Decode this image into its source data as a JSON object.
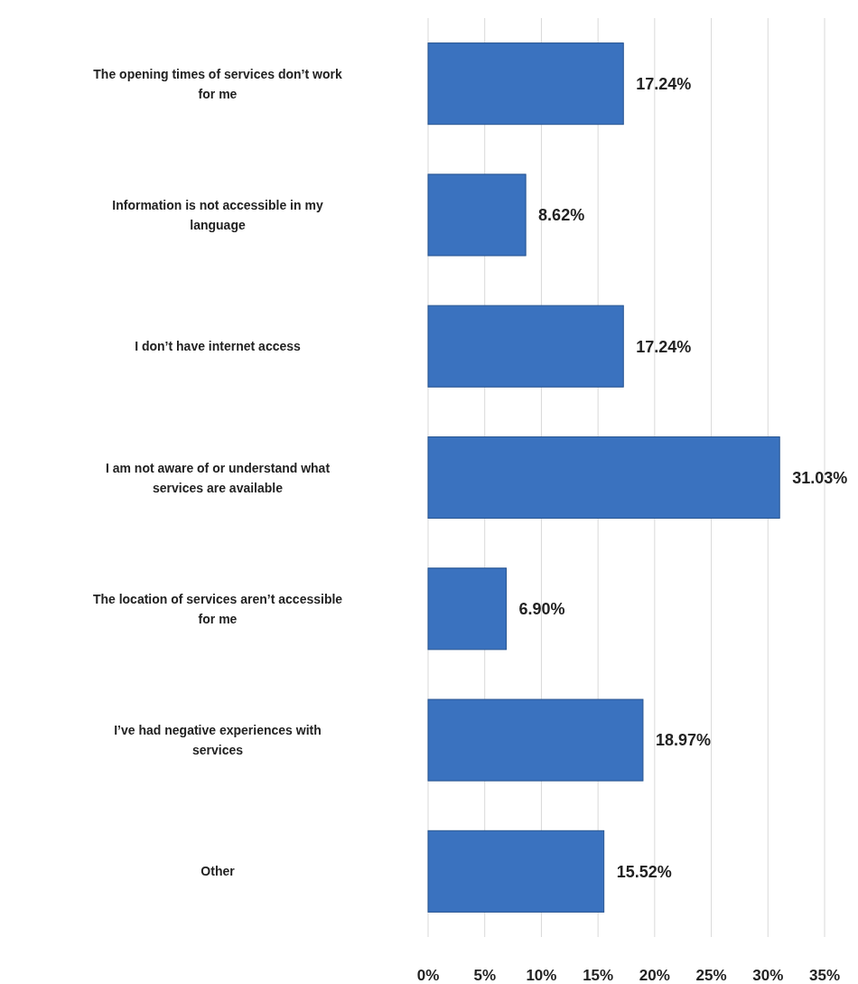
{
  "chart_data": {
    "type": "bar",
    "orientation": "horizontal",
    "categories": [
      "The opening times of services don’t work for me",
      "Information is not accessible in my language",
      "I don’t have internet access",
      "I am not aware of or understand what services are available",
      "The location of services aren’t accessible for me",
      "I’ve had negative experiences with services",
      "Other"
    ],
    "values": [
      17.24,
      8.62,
      17.24,
      31.03,
      6.9,
      18.97,
      15.52
    ],
    "value_labels": [
      "17.24%",
      "8.62%",
      "17.24%",
      "31.03%",
      "6.90%",
      "18.97%",
      "15.52%"
    ],
    "color": "#3a72bf",
    "xlim": [
      0,
      35
    ],
    "xticks": [
      {
        "value": 0,
        "label": "0%"
      },
      {
        "value": 5,
        "label": "5%"
      },
      {
        "value": 10,
        "label": "10%"
      },
      {
        "value": 15,
        "label": "15%"
      },
      {
        "value": 20,
        "label": "20%"
      },
      {
        "value": 25,
        "label": "25%"
      },
      {
        "value": 30,
        "label": "30%"
      },
      {
        "value": 35,
        "label": "35%"
      }
    ],
    "grid": "x"
  }
}
